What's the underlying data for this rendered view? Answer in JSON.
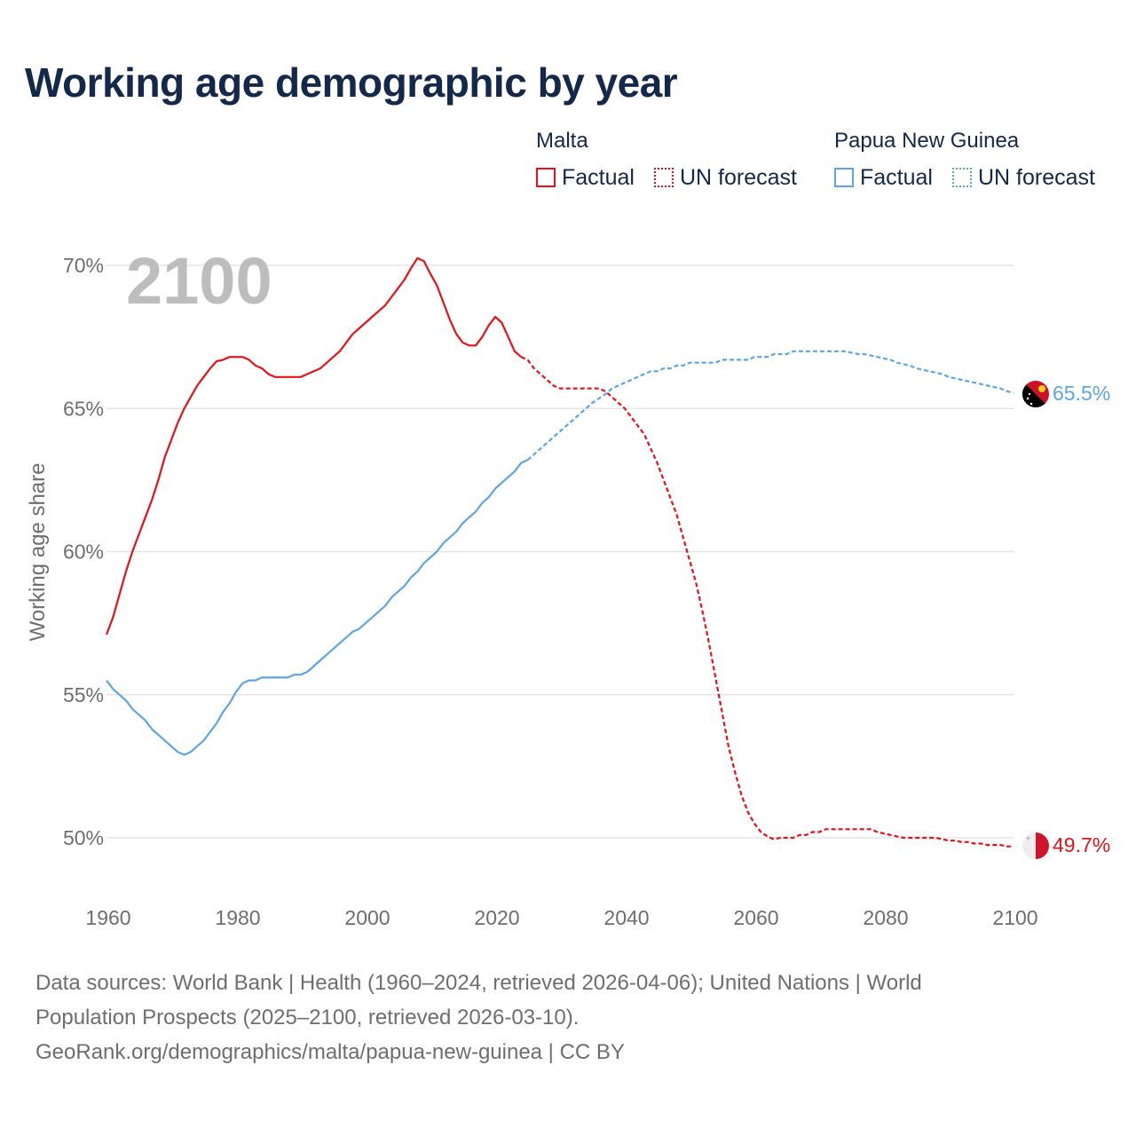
{
  "chart_data": {
    "type": "line",
    "title": "Working age demographic by year",
    "ylabel": "Working age share",
    "xlabel": "",
    "year_label": "2100",
    "xlim": [
      1960,
      2100
    ],
    "ylim": [
      50,
      70
    ],
    "x_ticks": [
      "1960",
      "1980",
      "2000",
      "2020",
      "2040",
      "2060",
      "2080",
      "2100"
    ],
    "y_ticks": [
      {
        "value": 70,
        "label": "70%"
      },
      {
        "value": 65,
        "label": "65%"
      },
      {
        "value": 60,
        "label": "60%"
      },
      {
        "value": 55,
        "label": "55%"
      },
      {
        "value": 50,
        "label": "50%"
      }
    ],
    "legend": {
      "groups": [
        {
          "name": "Malta",
          "color": "#e8111b",
          "factual_label": "Factual",
          "forecast_label": "UN forecast"
        },
        {
          "name": "Papua New Guinea",
          "color": "#5ea6e2",
          "factual_label": "Factual",
          "forecast_label": "UN forecast",
          "forecast_swatch_color": "#58a6c6"
        }
      ]
    },
    "series": [
      {
        "name": "Malta",
        "color": "#e8111b",
        "end_label": "49.7%",
        "factual": [
          [
            1960,
            57.1
          ],
          [
            1961,
            57.7
          ],
          [
            1962,
            58.5
          ],
          [
            1963,
            59.3
          ],
          [
            1964,
            60.0
          ],
          [
            1965,
            60.6
          ],
          [
            1966,
            61.2
          ],
          [
            1967,
            61.8
          ],
          [
            1968,
            62.5
          ],
          [
            1969,
            63.3
          ],
          [
            1970,
            63.9
          ],
          [
            1971,
            64.5
          ],
          [
            1972,
            65.0
          ],
          [
            1973,
            65.4
          ],
          [
            1974,
            65.8
          ],
          [
            1975,
            66.1
          ],
          [
            1976,
            66.4
          ],
          [
            1977,
            66.65
          ],
          [
            1978,
            66.7
          ],
          [
            1979,
            66.8
          ],
          [
            1980,
            66.8
          ],
          [
            1981,
            66.8
          ],
          [
            1982,
            66.7
          ],
          [
            1983,
            66.5
          ],
          [
            1984,
            66.4
          ],
          [
            1985,
            66.2
          ],
          [
            1986,
            66.1
          ],
          [
            1987,
            66.1
          ],
          [
            1988,
            66.1
          ],
          [
            1989,
            66.1
          ],
          [
            1990,
            66.1
          ],
          [
            1991,
            66.2
          ],
          [
            1992,
            66.3
          ],
          [
            1993,
            66.4
          ],
          [
            1994,
            66.6
          ],
          [
            1995,
            66.8
          ],
          [
            1996,
            67.0
          ],
          [
            1997,
            67.3
          ],
          [
            1998,
            67.6
          ],
          [
            1999,
            67.8
          ],
          [
            2000,
            68.0
          ],
          [
            2001,
            68.2
          ],
          [
            2002,
            68.4
          ],
          [
            2003,
            68.6
          ],
          [
            2004,
            68.9
          ],
          [
            2005,
            69.2
          ],
          [
            2006,
            69.5
          ],
          [
            2007,
            69.9
          ],
          [
            2008,
            70.25
          ],
          [
            2009,
            70.15
          ],
          [
            2010,
            69.7
          ],
          [
            2011,
            69.3
          ],
          [
            2012,
            68.7
          ],
          [
            2013,
            68.1
          ],
          [
            2014,
            67.6
          ],
          [
            2015,
            67.3
          ],
          [
            2016,
            67.2
          ],
          [
            2017,
            67.2
          ],
          [
            2018,
            67.5
          ],
          [
            2019,
            67.9
          ],
          [
            2020,
            68.2
          ],
          [
            2021,
            68.0
          ],
          [
            2022,
            67.5
          ],
          [
            2023,
            67.0
          ],
          [
            2024,
            66.8
          ]
        ],
        "forecast": [
          [
            2024,
            66.8
          ],
          [
            2025,
            66.7
          ],
          [
            2026,
            66.4
          ],
          [
            2027,
            66.2
          ],
          [
            2028,
            66.0
          ],
          [
            2029,
            65.8
          ],
          [
            2030,
            65.7
          ],
          [
            2031,
            65.7
          ],
          [
            2032,
            65.7
          ],
          [
            2033,
            65.7
          ],
          [
            2034,
            65.7
          ],
          [
            2035,
            65.7
          ],
          [
            2036,
            65.7
          ],
          [
            2037,
            65.6
          ],
          [
            2038,
            65.4
          ],
          [
            2039,
            65.2
          ],
          [
            2040,
            65.0
          ],
          [
            2041,
            64.7
          ],
          [
            2042,
            64.4
          ],
          [
            2043,
            64.1
          ],
          [
            2044,
            63.6
          ],
          [
            2045,
            63.1
          ],
          [
            2046,
            62.5
          ],
          [
            2047,
            61.9
          ],
          [
            2048,
            61.3
          ],
          [
            2049,
            60.5
          ],
          [
            2050,
            59.7
          ],
          [
            2051,
            58.9
          ],
          [
            2052,
            57.9
          ],
          [
            2053,
            56.8
          ],
          [
            2054,
            55.6
          ],
          [
            2055,
            54.4
          ],
          [
            2056,
            53.2
          ],
          [
            2057,
            52.3
          ],
          [
            2058,
            51.5
          ],
          [
            2059,
            50.9
          ],
          [
            2060,
            50.5
          ],
          [
            2061,
            50.2
          ],
          [
            2062,
            50.05
          ],
          [
            2063,
            49.95
          ],
          [
            2064,
            50.0
          ],
          [
            2065,
            50.0
          ],
          [
            2066,
            50.0
          ],
          [
            2067,
            50.1
          ],
          [
            2068,
            50.1
          ],
          [
            2069,
            50.2
          ],
          [
            2070,
            50.2
          ],
          [
            2071,
            50.3
          ],
          [
            2072,
            50.3
          ],
          [
            2073,
            50.3
          ],
          [
            2074,
            50.3
          ],
          [
            2075,
            50.3
          ],
          [
            2076,
            50.3
          ],
          [
            2077,
            50.3
          ],
          [
            2078,
            50.3
          ],
          [
            2079,
            50.2
          ],
          [
            2080,
            50.15
          ],
          [
            2081,
            50.1
          ],
          [
            2082,
            50.05
          ],
          [
            2083,
            50.0
          ],
          [
            2084,
            50.0
          ],
          [
            2085,
            50.0
          ],
          [
            2086,
            50.0
          ],
          [
            2087,
            50.0
          ],
          [
            2088,
            50.0
          ],
          [
            2089,
            49.95
          ],
          [
            2090,
            49.9
          ],
          [
            2091,
            49.9
          ],
          [
            2092,
            49.85
          ],
          [
            2093,
            49.85
          ],
          [
            2094,
            49.8
          ],
          [
            2095,
            49.8
          ],
          [
            2096,
            49.75
          ],
          [
            2097,
            49.75
          ],
          [
            2098,
            49.75
          ],
          [
            2099,
            49.7
          ],
          [
            2100,
            49.7
          ]
        ]
      },
      {
        "name": "Papua New Guinea",
        "color": "#5ea6e2",
        "end_label": "65.5%",
        "factual": [
          [
            1960,
            55.5
          ],
          [
            1961,
            55.2
          ],
          [
            1962,
            55.0
          ],
          [
            1963,
            54.8
          ],
          [
            1964,
            54.5
          ],
          [
            1965,
            54.3
          ],
          [
            1966,
            54.1
          ],
          [
            1967,
            53.8
          ],
          [
            1968,
            53.6
          ],
          [
            1969,
            53.4
          ],
          [
            1970,
            53.2
          ],
          [
            1971,
            53.0
          ],
          [
            1972,
            52.9
          ],
          [
            1973,
            53.0
          ],
          [
            1974,
            53.2
          ],
          [
            1975,
            53.4
          ],
          [
            1976,
            53.7
          ],
          [
            1977,
            54.0
          ],
          [
            1978,
            54.4
          ],
          [
            1979,
            54.7
          ],
          [
            1980,
            55.1
          ],
          [
            1981,
            55.4
          ],
          [
            1982,
            55.5
          ],
          [
            1983,
            55.5
          ],
          [
            1984,
            55.6
          ],
          [
            1985,
            55.6
          ],
          [
            1986,
            55.6
          ],
          [
            1987,
            55.6
          ],
          [
            1988,
            55.6
          ],
          [
            1989,
            55.7
          ],
          [
            1990,
            55.7
          ],
          [
            1991,
            55.8
          ],
          [
            1992,
            56.0
          ],
          [
            1993,
            56.2
          ],
          [
            1994,
            56.4
          ],
          [
            1995,
            56.6
          ],
          [
            1996,
            56.8
          ],
          [
            1997,
            57.0
          ],
          [
            1998,
            57.2
          ],
          [
            1999,
            57.3
          ],
          [
            2000,
            57.5
          ],
          [
            2001,
            57.7
          ],
          [
            2002,
            57.9
          ],
          [
            2003,
            58.1
          ],
          [
            2004,
            58.4
          ],
          [
            2005,
            58.6
          ],
          [
            2006,
            58.8
          ],
          [
            2007,
            59.1
          ],
          [
            2008,
            59.3
          ],
          [
            2009,
            59.6
          ],
          [
            2010,
            59.8
          ],
          [
            2011,
            60.0
          ],
          [
            2012,
            60.3
          ],
          [
            2013,
            60.5
          ],
          [
            2014,
            60.7
          ],
          [
            2015,
            61.0
          ],
          [
            2016,
            61.2
          ],
          [
            2017,
            61.4
          ],
          [
            2018,
            61.7
          ],
          [
            2019,
            61.9
          ],
          [
            2020,
            62.2
          ],
          [
            2021,
            62.4
          ],
          [
            2022,
            62.6
          ],
          [
            2023,
            62.8
          ],
          [
            2024,
            63.1
          ],
          [
            2025,
            63.2
          ]
        ],
        "forecast": [
          [
            2025,
            63.2
          ],
          [
            2026,
            63.4
          ],
          [
            2027,
            63.6
          ],
          [
            2028,
            63.8
          ],
          [
            2029,
            64.0
          ],
          [
            2030,
            64.2
          ],
          [
            2031,
            64.4
          ],
          [
            2032,
            64.6
          ],
          [
            2033,
            64.8
          ],
          [
            2034,
            65.0
          ],
          [
            2035,
            65.2
          ],
          [
            2036,
            65.35
          ],
          [
            2037,
            65.5
          ],
          [
            2038,
            65.7
          ],
          [
            2039,
            65.8
          ],
          [
            2040,
            65.9
          ],
          [
            2041,
            66.0
          ],
          [
            2042,
            66.1
          ],
          [
            2043,
            66.2
          ],
          [
            2044,
            66.3
          ],
          [
            2045,
            66.3
          ],
          [
            2046,
            66.4
          ],
          [
            2047,
            66.4
          ],
          [
            2048,
            66.5
          ],
          [
            2049,
            66.5
          ],
          [
            2050,
            66.6
          ],
          [
            2051,
            66.6
          ],
          [
            2052,
            66.6
          ],
          [
            2053,
            66.6
          ],
          [
            2054,
            66.6
          ],
          [
            2055,
            66.7
          ],
          [
            2056,
            66.7
          ],
          [
            2057,
            66.7
          ],
          [
            2058,
            66.7
          ],
          [
            2059,
            66.7
          ],
          [
            2060,
            66.8
          ],
          [
            2061,
            66.8
          ],
          [
            2062,
            66.8
          ],
          [
            2063,
            66.9
          ],
          [
            2064,
            66.9
          ],
          [
            2065,
            66.9
          ],
          [
            2066,
            67.0
          ],
          [
            2067,
            67.0
          ],
          [
            2068,
            67.0
          ],
          [
            2069,
            67.0
          ],
          [
            2070,
            67.0
          ],
          [
            2071,
            67.0
          ],
          [
            2072,
            67.0
          ],
          [
            2073,
            67.0
          ],
          [
            2074,
            67.0
          ],
          [
            2075,
            66.95
          ],
          [
            2076,
            66.9
          ],
          [
            2077,
            66.9
          ],
          [
            2078,
            66.85
          ],
          [
            2079,
            66.8
          ],
          [
            2080,
            66.75
          ],
          [
            2081,
            66.7
          ],
          [
            2082,
            66.6
          ],
          [
            2083,
            66.55
          ],
          [
            2084,
            66.5
          ],
          [
            2085,
            66.4
          ],
          [
            2086,
            66.35
          ],
          [
            2087,
            66.3
          ],
          [
            2088,
            66.25
          ],
          [
            2089,
            66.2
          ],
          [
            2090,
            66.1
          ],
          [
            2091,
            66.05
          ],
          [
            2092,
            66.0
          ],
          [
            2093,
            65.95
          ],
          [
            2094,
            65.9
          ],
          [
            2095,
            65.85
          ],
          [
            2096,
            65.8
          ],
          [
            2097,
            65.75
          ],
          [
            2098,
            65.7
          ],
          [
            2099,
            65.6
          ],
          [
            2100,
            65.55
          ]
        ]
      }
    ]
  },
  "footer": {
    "line1": "Data sources: World Bank | Health (1960–2024, retrieved 2026-04-06); United Nations | World",
    "line2": "Population Prospects (2025–2100, retrieved 2026-03-10).",
    "line3": "GeoRank.org/demographics/malta/papua-new-guinea | CC BY"
  }
}
